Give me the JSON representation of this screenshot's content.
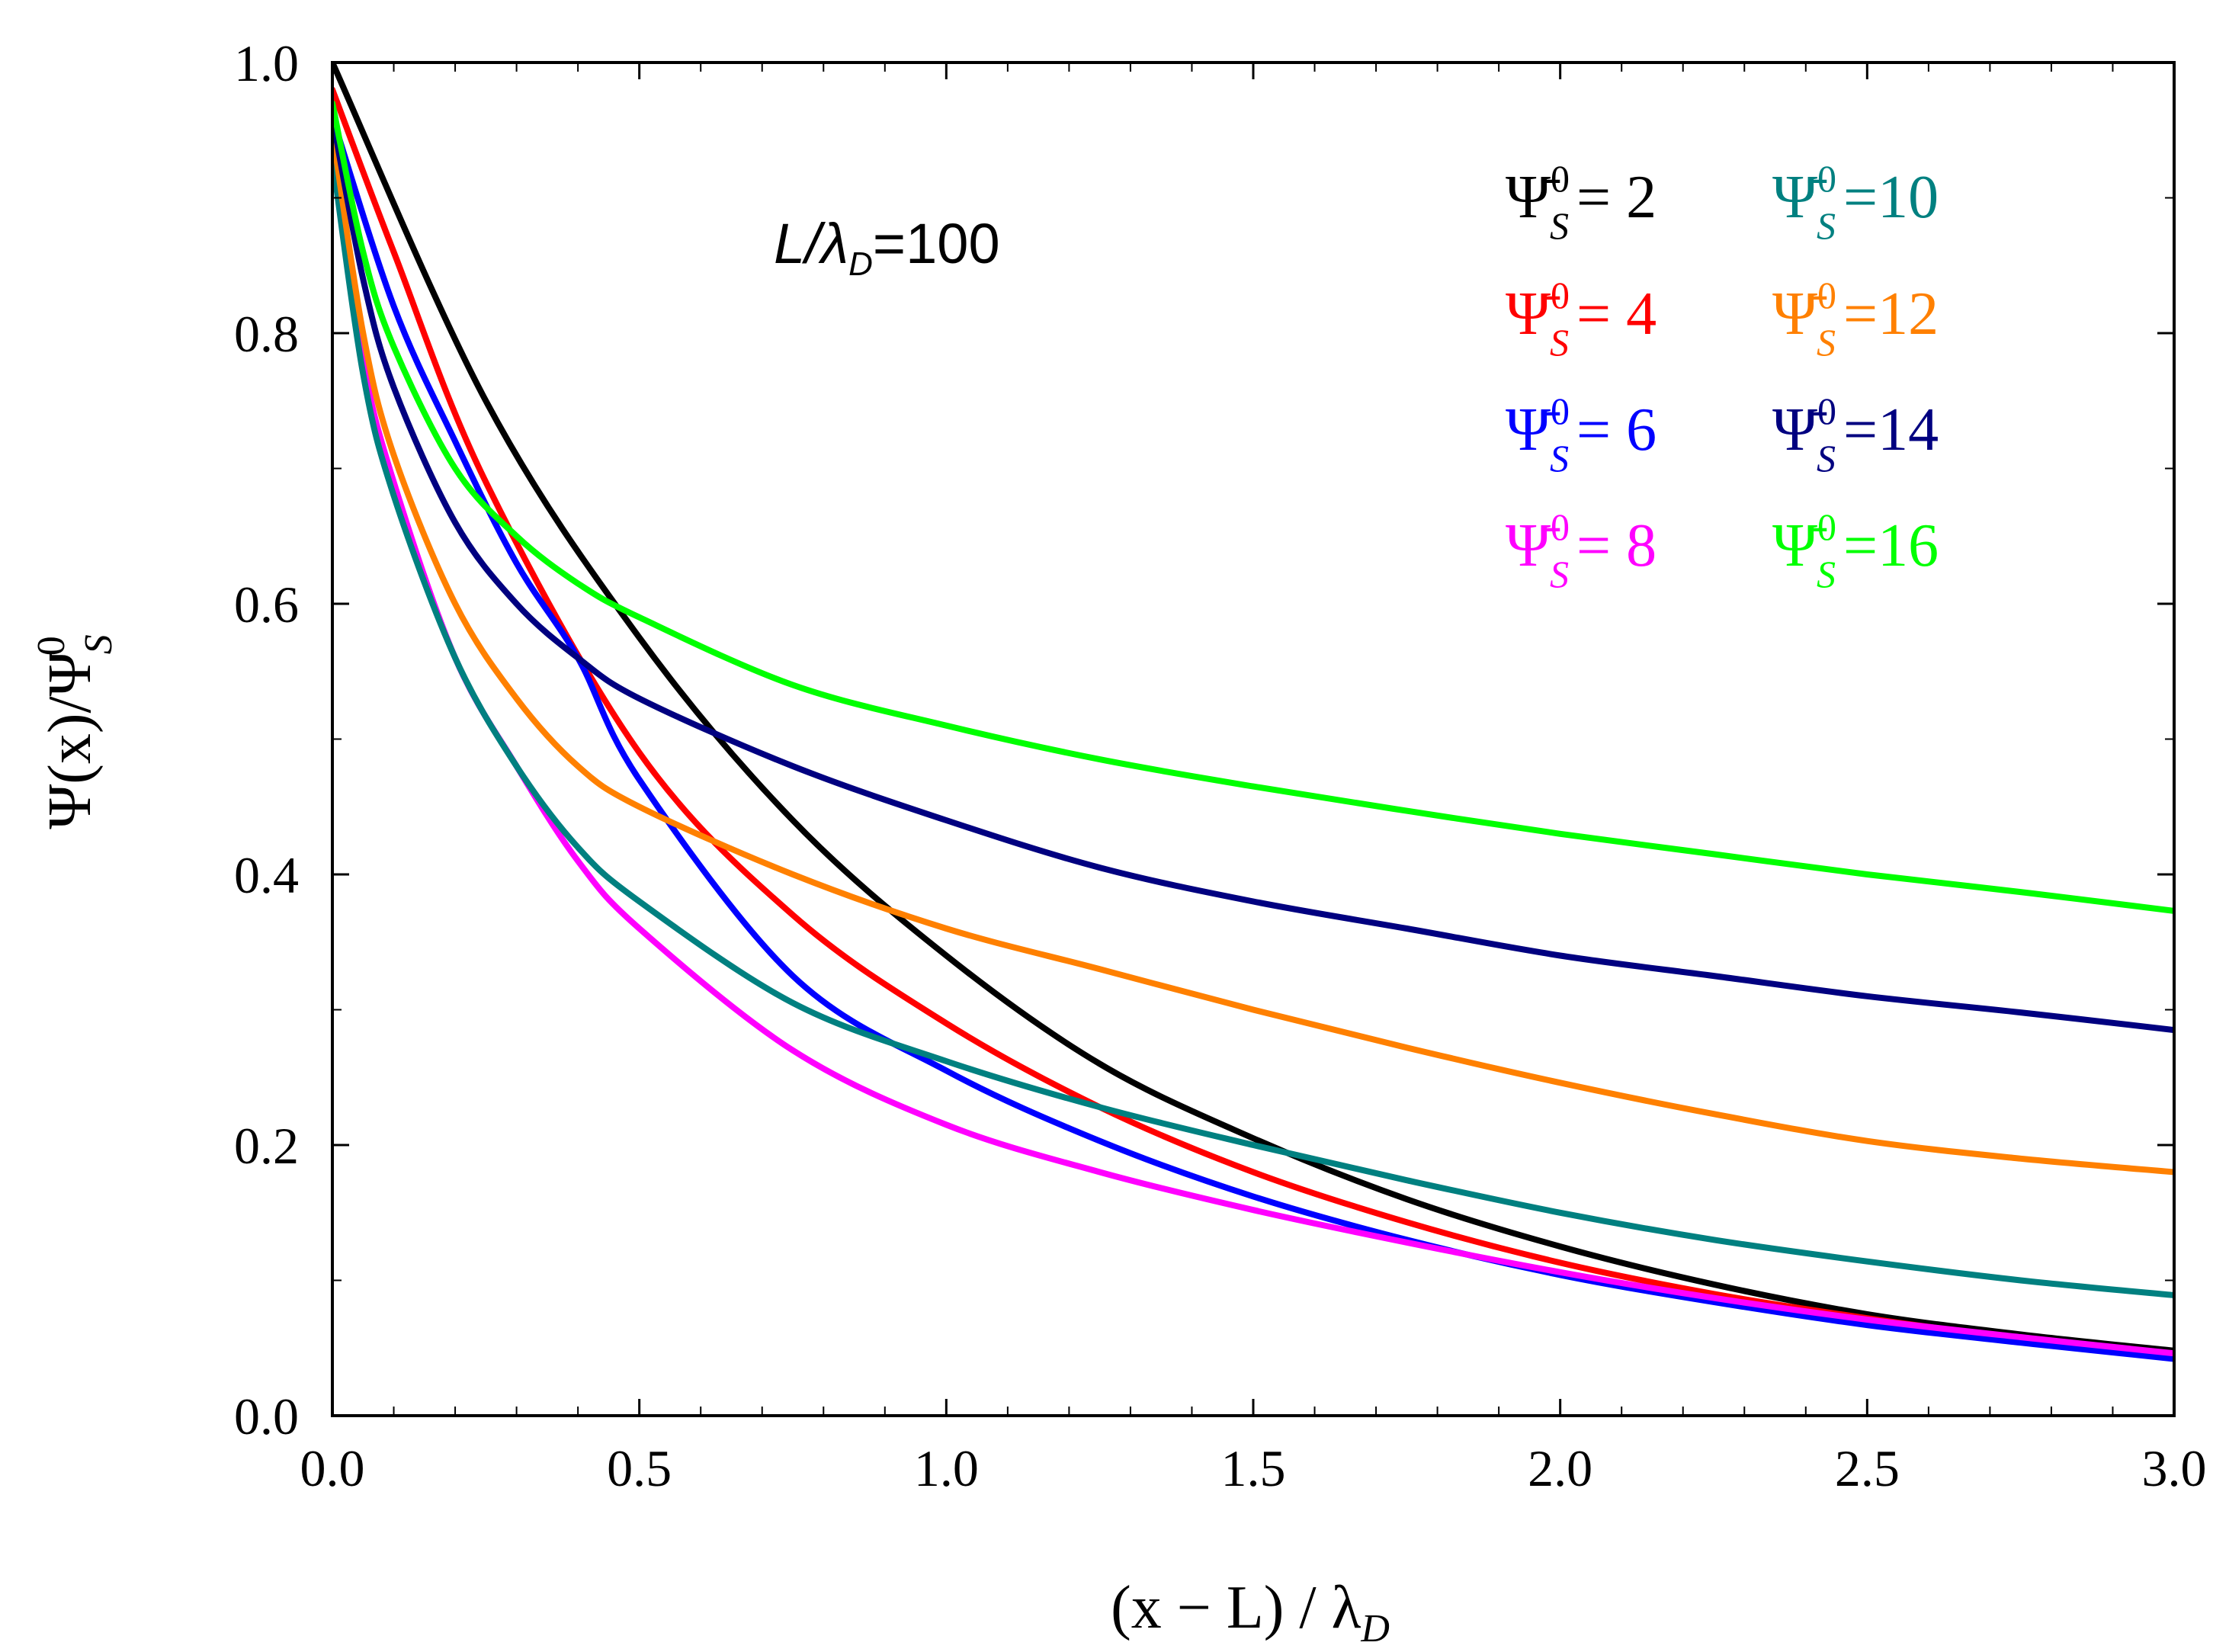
{
  "chart_data": {
    "type": "line",
    "title": "",
    "xlabel": "(x − L) / λ",
    "xlabel_sub": "D",
    "ylabel": "Ψ(x)/Ψ",
    "ylabel_sup": "0",
    "ylabel_sub": "S",
    "xlim": [
      0,
      3
    ],
    "ylim": [
      0,
      1
    ],
    "xticks": [
      0,
      0.5,
      1,
      1.5,
      2,
      2.5,
      3
    ],
    "xtick_labels": [
      "0.0",
      "0.5",
      "1.0",
      "1.5",
      "2.0",
      "2.5",
      "3.0"
    ],
    "yticks": [
      0,
      0.2,
      0.4,
      0.6,
      0.8,
      1
    ],
    "ytick_labels": [
      "0.0",
      "0.2",
      "0.4",
      "0.6",
      "0.8",
      "1.0"
    ],
    "grid": false,
    "legend_position": "top-right",
    "annotation": {
      "text_prefix": "L/λ",
      "sub": "D",
      "text_suffix": "=100"
    },
    "series": [
      {
        "name": "2",
        "legend_label": "Ψ̄",
        "sup": "0",
        "sub": "S",
        "eq": "= 2",
        "color": "#000000",
        "x": [
          0,
          0.25,
          0.5,
          0.75,
          1.0,
          1.25,
          1.5,
          1.75,
          2.0,
          2.25,
          2.5,
          2.75,
          3.0
        ],
        "y": [
          1.0,
          0.75,
          0.575,
          0.44,
          0.34,
          0.26,
          0.205,
          0.16,
          0.125,
          0.097,
          0.075,
          0.06,
          0.048
        ]
      },
      {
        "name": "4",
        "legend_label": "Ψ̄",
        "sup": "0",
        "sub": "S",
        "eq": "= 4",
        "color": "#ff0000",
        "x": [
          0,
          0.1,
          0.25,
          0.5,
          0.75,
          1.0,
          1.25,
          1.5,
          1.75,
          2.0,
          2.25,
          2.5,
          2.75,
          3.0
        ],
        "y": [
          0.98,
          0.86,
          0.69,
          0.49,
          0.37,
          0.29,
          0.228,
          0.18,
          0.143,
          0.113,
          0.09,
          0.072,
          0.057,
          0.045
        ]
      },
      {
        "name": "6",
        "legend_label": "Ψ̄",
        "sup": "0",
        "sub": "S",
        "eq": "= 6",
        "color": "#0000ff",
        "x": [
          0,
          0.1,
          0.2,
          0.3,
          0.4,
          0.5,
          0.75,
          1.0,
          1.25,
          1.5,
          1.75,
          2.0,
          2.25,
          2.5,
          2.75,
          3.0
        ],
        "y": [
          0.96,
          0.82,
          0.72,
          0.63,
          0.56,
          0.47,
          0.325,
          0.255,
          0.203,
          0.162,
          0.13,
          0.104,
          0.084,
          0.067,
          0.054,
          0.042
        ]
      },
      {
        "name": "8",
        "legend_label": "Ψ̄",
        "sup": "0",
        "sub": "S",
        "eq": "= 8",
        "color": "#ff00ff",
        "x": [
          0,
          0.05,
          0.1,
          0.2,
          0.3,
          0.4,
          0.5,
          0.75,
          1.0,
          1.25,
          1.5,
          1.75,
          2.0,
          2.25,
          2.5,
          2.75,
          3.0
        ],
        "y": [
          0.94,
          0.78,
          0.69,
          0.56,
          0.48,
          0.41,
          0.36,
          0.27,
          0.215,
          0.18,
          0.152,
          0.128,
          0.106,
          0.087,
          0.071,
          0.058,
          0.046
        ]
      },
      {
        "name": "10",
        "legend_label": "Ψ̄",
        "sup": "0",
        "sub": "S",
        "eq": "=10",
        "color": "#008080",
        "x": [
          0,
          0.05,
          0.1,
          0.2,
          0.3,
          0.4,
          0.5,
          0.75,
          1.0,
          1.25,
          1.5,
          1.75,
          2.0,
          2.25,
          2.5,
          2.75,
          3.0
        ],
        "y": [
          0.93,
          0.77,
          0.68,
          0.56,
          0.48,
          0.42,
          0.38,
          0.305,
          0.262,
          0.228,
          0.2,
          0.174,
          0.15,
          0.13,
          0.114,
          0.1,
          0.089
        ]
      },
      {
        "name": "12",
        "legend_label": "Ψ̄",
        "sup": "0",
        "sub": "S",
        "eq": "=12",
        "color": "#ff8000",
        "x": [
          0,
          0.05,
          0.1,
          0.2,
          0.3,
          0.4,
          0.5,
          0.75,
          1.0,
          1.25,
          1.5,
          1.75,
          2.0,
          2.25,
          2.5,
          2.75,
          3.0
        ],
        "y": [
          0.95,
          0.8,
          0.71,
          0.6,
          0.53,
          0.48,
          0.45,
          0.4,
          0.36,
          0.33,
          0.3,
          0.272,
          0.246,
          0.223,
          0.203,
          0.19,
          0.18
        ]
      },
      {
        "name": "14",
        "legend_label": "Ψ̄",
        "sup": "0",
        "sub": "S",
        "eq": "=14",
        "color": "#000080",
        "x": [
          0,
          0.05,
          0.1,
          0.2,
          0.3,
          0.4,
          0.5,
          0.75,
          1.0,
          1.25,
          1.5,
          1.75,
          2.0,
          2.25,
          2.5,
          2.75,
          3.0
        ],
        "y": [
          0.96,
          0.84,
          0.76,
          0.66,
          0.6,
          0.56,
          0.53,
          0.48,
          0.44,
          0.405,
          0.38,
          0.36,
          0.34,
          0.325,
          0.31,
          0.298,
          0.285
        ]
      },
      {
        "name": "16",
        "legend_label": "Ψ̄",
        "sup": "0",
        "sub": "S",
        "eq": "=16",
        "color": "#00ff00",
        "x": [
          0,
          0.05,
          0.1,
          0.2,
          0.3,
          0.4,
          0.5,
          0.75,
          1.0,
          1.25,
          1.5,
          1.75,
          2.0,
          2.25,
          2.5,
          2.75,
          3.0
        ],
        "y": [
          0.97,
          0.86,
          0.79,
          0.7,
          0.65,
          0.615,
          0.59,
          0.54,
          0.51,
          0.485,
          0.465,
          0.447,
          0.43,
          0.415,
          0.4,
          0.387,
          0.373
        ]
      }
    ]
  }
}
